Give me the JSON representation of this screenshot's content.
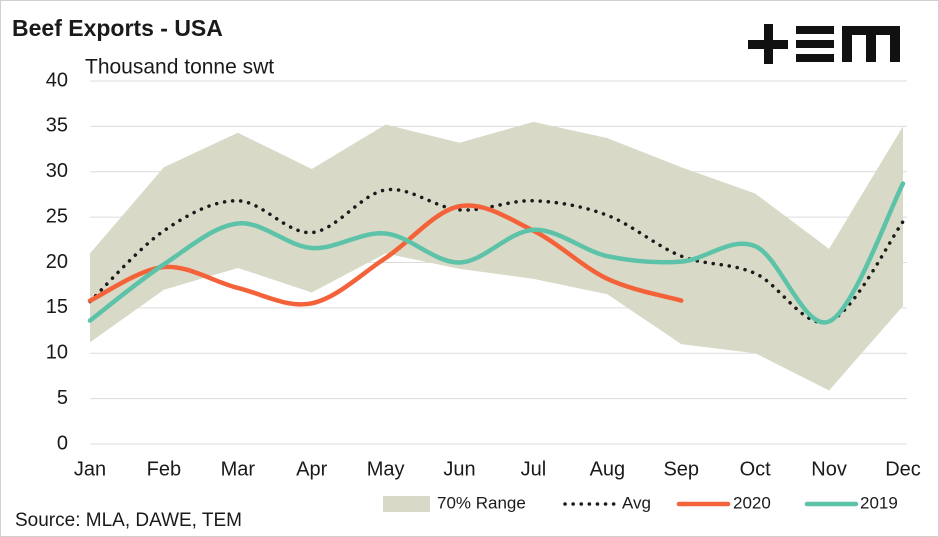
{
  "chart_data": {
    "type": "line",
    "title": "Beef Exports - USA",
    "subtitle": "Thousand tonne swt",
    "source": "Source: MLA, DAWE, TEM",
    "categories": [
      "Jan",
      "Feb",
      "Mar",
      "Apr",
      "May",
      "Jun",
      "Jul",
      "Aug",
      "Sep",
      "Oct",
      "Nov",
      "Dec"
    ],
    "ylim": [
      0,
      40
    ],
    "yticks": [
      0,
      5,
      10,
      15,
      20,
      25,
      30,
      35,
      40
    ],
    "grid": true,
    "legend": "bottom",
    "range": {
      "name": "70% Range",
      "color": "#d9d9c7",
      "upper": [
        21,
        30.5,
        34.3,
        30.3,
        35.2,
        33.2,
        35.5,
        33.7,
        30.5,
        27.6,
        21.5,
        35
      ],
      "lower": [
        11.2,
        17,
        19.4,
        16.7,
        21,
        19.3,
        18.2,
        16.5,
        11,
        10,
        5.9,
        15.2
      ]
    },
    "series": [
      {
        "name": "Avg",
        "color": "#1a1a1a",
        "dash": "dotted",
        "values": [
          15.7,
          23.5,
          26.8,
          23.3,
          28,
          25.8,
          26.8,
          25.2,
          20.7,
          18.8,
          13.5,
          24.5
        ]
      },
      {
        "name": "2020",
        "color": "#f4623a",
        "values": [
          15.8,
          19.5,
          17.2,
          15.5,
          20.5,
          26.2,
          23.5,
          18.2,
          15.8,
          null,
          null,
          null
        ]
      },
      {
        "name": "2019",
        "color": "#5cc3a8",
        "values": [
          13.6,
          19.8,
          24.3,
          21.6,
          23.2,
          20,
          23.6,
          20.7,
          20.1,
          21.8,
          13.5,
          28.7
        ]
      }
    ]
  }
}
